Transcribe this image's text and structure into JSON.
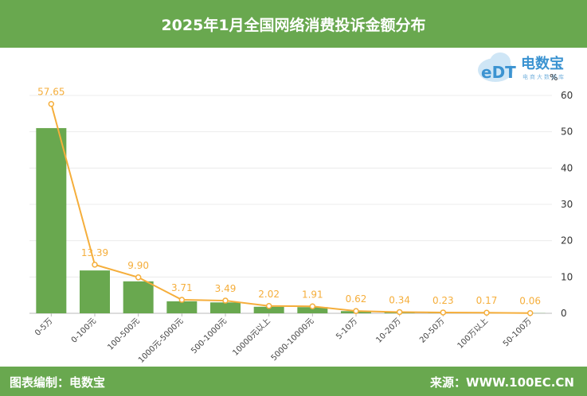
{
  "header": {
    "title": "2025年1月全国网络消费投诉金额分布"
  },
  "footer": {
    "left": "图表编制：电数宝",
    "right": "来源：WWW.100EC.CN"
  },
  "logo": {
    "name": "电数宝",
    "sub": "电商大数据库",
    "icon": "cloud-edt-logo-icon"
  },
  "colors": {
    "bar": "#69a84f",
    "line": "#f5ae3b",
    "header": "#69a84f"
  },
  "chart_data": {
    "type": "bar",
    "categories": [
      "0-5万",
      "0-100元",
      "100-500元",
      "1000元-5000元",
      "500-1000元",
      "10000元以上",
      "5000-10000元",
      "5-10万",
      "10-20万",
      "20-50万",
      "100万以上",
      "50-100万"
    ],
    "series": [
      {
        "type": "bar",
        "values": [
          51.0,
          11.8,
          8.8,
          3.3,
          3.0,
          1.8,
          1.7,
          0.6,
          0.3,
          0.2,
          0.15,
          0.05
        ]
      },
      {
        "type": "line",
        "values": [
          57.65,
          13.39,
          9.9,
          3.71,
          3.49,
          2.02,
          1.91,
          0.62,
          0.34,
          0.23,
          0.17,
          0.06
        ]
      }
    ],
    "data_labels": [
      "57.65",
      "13.39",
      "9.90",
      "3.71",
      "3.49",
      "2.02",
      "1.91",
      "0.62",
      "0.34",
      "0.23",
      "0.17",
      "0.06"
    ],
    "yunit": "%",
    "ylim": [
      0,
      60
    ],
    "yticks": [
      0,
      10,
      20,
      30,
      40,
      50,
      60
    ],
    "grid": true
  }
}
